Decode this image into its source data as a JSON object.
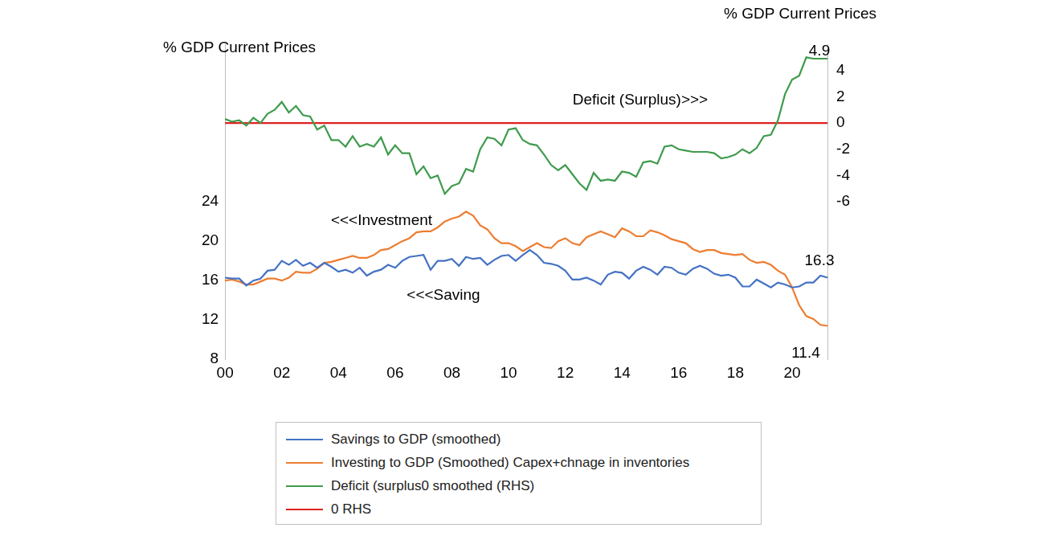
{
  "chart_data": {
    "type": "line",
    "y_label": "% GDP Current Prices",
    "y2_label": "% GDP Current Prices",
    "annotations": [
      {
        "text": "Deficit (Surplus)>>>"
      },
      {
        "text": "<<<Investment"
      },
      {
        "text": "<<<Saving"
      },
      {
        "text": "4.9"
      },
      {
        "text": "16.3"
      },
      {
        "text": "11.4"
      }
    ],
    "categories": [
      "00",
      null,
      null,
      null,
      null,
      null,
      null,
      null,
      "02",
      null,
      null,
      null,
      null,
      null,
      null,
      null,
      "04",
      null,
      null,
      null,
      null,
      null,
      null,
      null,
      "06",
      null,
      null,
      null,
      null,
      null,
      null,
      null,
      "08",
      null,
      null,
      null,
      null,
      null,
      null,
      null,
      "10",
      null,
      null,
      null,
      null,
      null,
      null,
      null,
      "12",
      null,
      null,
      null,
      null,
      null,
      null,
      null,
      "14",
      null,
      null,
      null,
      null,
      null,
      null,
      null,
      "16",
      null,
      null,
      null,
      null,
      null,
      null,
      null,
      "18",
      null,
      null,
      null,
      null,
      null,
      null,
      null,
      "20",
      null,
      null,
      null,
      null,
      null
    ],
    "series": [
      {
        "name": "Savings to GDP (smoothed)",
        "color": "#4472c4",
        "values": [
          16.3,
          16.2,
          16.2,
          15.5,
          16.0,
          16.2,
          17.0,
          17.1,
          18.0,
          17.6,
          18.1,
          17.5,
          17.8,
          17.3,
          17.8,
          17.4,
          16.9,
          17.1,
          16.8,
          17.3,
          16.5,
          16.9,
          17.1,
          17.6,
          17.3,
          18.0,
          18.4,
          18.5,
          18.6,
          17.1,
          18.0,
          18.0,
          18.2,
          17.5,
          18.4,
          18.2,
          18.3,
          17.6,
          18.1,
          18.5,
          18.6,
          18.0,
          18.6,
          19.1,
          18.6,
          17.8,
          17.7,
          17.5,
          17.0,
          16.1,
          16.1,
          16.3,
          16.0,
          15.6,
          16.6,
          16.9,
          16.8,
          16.2,
          17.0,
          17.4,
          17.1,
          16.6,
          17.4,
          17.3,
          16.8,
          16.6,
          17.2,
          17.5,
          17.2,
          16.7,
          16.5,
          16.6,
          16.3,
          15.4,
          15.4,
          16.1,
          15.7,
          15.3,
          15.8,
          15.6,
          15.3,
          15.4,
          15.8,
          15.8,
          16.5,
          16.3
        ]
      },
      {
        "name": "Investing to GDP (Smoothed) Capex+chnage in inventories",
        "color": "#ed7d31",
        "values": [
          16.0,
          16.1,
          15.9,
          15.6,
          15.6,
          15.9,
          16.2,
          16.2,
          16.0,
          16.3,
          16.9,
          16.8,
          16.8,
          17.2,
          17.8,
          17.9,
          18.1,
          18.3,
          18.5,
          18.3,
          18.3,
          18.6,
          19.1,
          19.2,
          19.6,
          20.0,
          20.3,
          20.9,
          21.0,
          21.0,
          21.4,
          22.0,
          22.3,
          22.5,
          23.0,
          22.6,
          21.6,
          21.2,
          20.3,
          19.8,
          19.8,
          19.5,
          19.0,
          19.4,
          19.8,
          19.4,
          19.3,
          20.0,
          20.3,
          19.8,
          19.6,
          20.4,
          20.7,
          21.0,
          20.7,
          20.4,
          21.3,
          21.0,
          20.5,
          20.5,
          21.1,
          20.9,
          20.6,
          20.2,
          20.0,
          19.8,
          19.2,
          18.9,
          19.1,
          19.1,
          18.8,
          18.7,
          18.6,
          18.7,
          18.1,
          17.8,
          17.9,
          17.6,
          17.0,
          16.6,
          15.3,
          13.5,
          12.4,
          12.1,
          11.5,
          11.4
        ]
      },
      {
        "name": "Deficit (surplus0 smoothed (RHS)",
        "color": "#3f9b4d",
        "axis": "y2",
        "values": [
          0.3,
          0.1,
          0.2,
          -0.2,
          0.4,
          0.0,
          0.7,
          1.0,
          1.6,
          0.8,
          1.3,
          0.6,
          0.5,
          -0.5,
          -0.2,
          -1.3,
          -1.3,
          -1.8,
          -1.0,
          -1.8,
          -1.6,
          -1.8,
          -1.1,
          -2.4,
          -1.7,
          -2.3,
          -2.3,
          -3.9,
          -3.3,
          -4.2,
          -4.0,
          -5.4,
          -4.8,
          -4.6,
          -3.5,
          -3.7,
          -2.0,
          -1.1,
          -1.2,
          -1.7,
          -0.5,
          -0.4,
          -1.3,
          -1.6,
          -1.7,
          -2.4,
          -3.2,
          -3.6,
          -3.2,
          -3.9,
          -4.6,
          -5.1,
          -3.8,
          -4.4,
          -4.3,
          -4.4,
          -3.7,
          -3.8,
          -4.1,
          -3.0,
          -2.9,
          -3.1,
          -1.8,
          -1.7,
          -2.0,
          -2.1,
          -2.2,
          -2.2,
          -2.2,
          -2.3,
          -2.7,
          -2.6,
          -2.4,
          -2.0,
          -2.3,
          -1.9,
          -1.0,
          -0.9,
          0.2,
          2.2,
          3.3,
          3.6,
          5.0,
          4.9,
          4.9,
          4.9
        ]
      },
      {
        "name": "0 RHS",
        "color": "#e02020",
        "axis": "y2",
        "values": [
          0,
          0,
          0,
          0,
          0,
          0,
          0,
          0,
          0,
          0,
          0,
          0,
          0,
          0,
          0,
          0,
          0,
          0,
          0,
          0,
          0,
          0,
          0,
          0,
          0,
          0,
          0,
          0,
          0,
          0,
          0,
          0,
          0,
          0,
          0,
          0,
          0,
          0,
          0,
          0,
          0,
          0,
          0,
          0,
          0,
          0,
          0,
          0,
          0,
          0,
          0,
          0,
          0,
          0,
          0,
          0,
          0,
          0,
          0,
          0,
          0,
          0,
          0,
          0,
          0,
          0,
          0,
          0,
          0,
          0,
          0,
          0,
          0,
          0,
          0,
          0,
          0,
          0,
          0,
          0,
          0,
          0,
          0,
          0,
          0,
          0
        ]
      }
    ],
    "ylim": [
      8,
      40
    ],
    "yticks": [
      8,
      12,
      16,
      20,
      24
    ],
    "y2lim": [
      -18,
      6
    ],
    "y2ticks": [
      -6,
      -4,
      -2,
      0,
      2,
      4
    ],
    "grid": false,
    "legend": "bottom"
  }
}
